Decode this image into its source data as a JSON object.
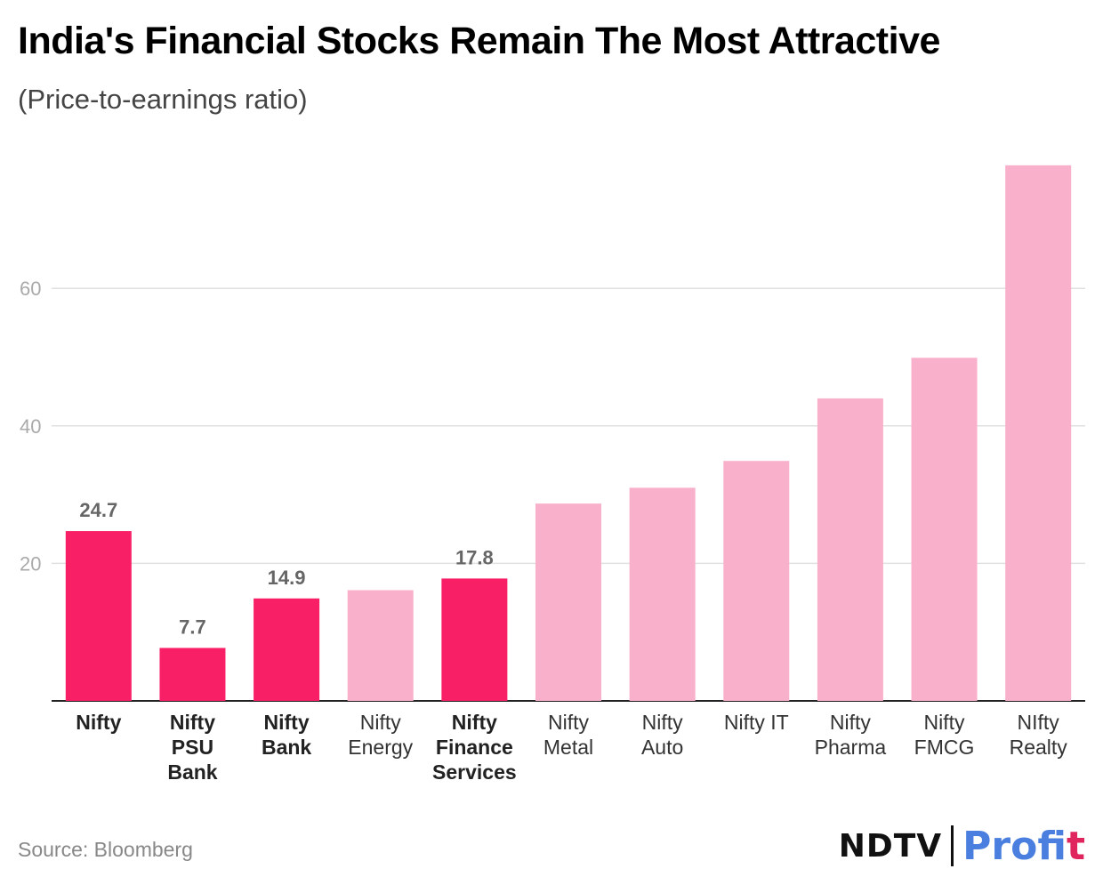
{
  "title": "India's Financial Stocks Remain The Most Attractive",
  "subtitle": "(Price-to-earnings ratio)",
  "source": "Source: Bloomberg",
  "logo": {
    "brand": "NDTV",
    "product_main": "Profi",
    "product_last": "t"
  },
  "colors": {
    "highlight": "#f81f66",
    "normal": "#f9b0cb",
    "grid": "#e0e0e0",
    "axis": "#222222",
    "tick": "#aaaaaa",
    "label_value": "#666666"
  },
  "chart_data": {
    "type": "bar",
    "title": "India's Financial Stocks Remain The Most Attractive",
    "subtitle": "(Price-to-earnings ratio)",
    "xlabel": "",
    "ylabel": "",
    "ylim": [
      0,
      78
    ],
    "yticks": [
      20,
      40,
      60
    ],
    "grid": true,
    "categories": [
      [
        "Nifty"
      ],
      [
        "Nifty",
        "PSU",
        "Bank"
      ],
      [
        "Nifty",
        "Bank"
      ],
      [
        "Nifty",
        "Energy"
      ],
      [
        "Nifty",
        "Finance",
        "Services"
      ],
      [
        "Nifty",
        "Metal"
      ],
      [
        "Nifty",
        "Auto"
      ],
      [
        "Nifty IT"
      ],
      [
        "Nifty",
        "Pharma"
      ],
      [
        "Nifty",
        "FMCG"
      ],
      [
        "NIfty",
        "Realty"
      ]
    ],
    "values": [
      24.7,
      7.7,
      14.9,
      16.1,
      17.8,
      28.7,
      31.0,
      34.9,
      44.0,
      49.9,
      77.9
    ],
    "highlighted": [
      true,
      true,
      true,
      false,
      true,
      false,
      false,
      false,
      false,
      false,
      false
    ],
    "data_labels": [
      "24.7",
      "7.7",
      "14.9",
      null,
      "17.8",
      null,
      null,
      null,
      null,
      null,
      null
    ]
  }
}
